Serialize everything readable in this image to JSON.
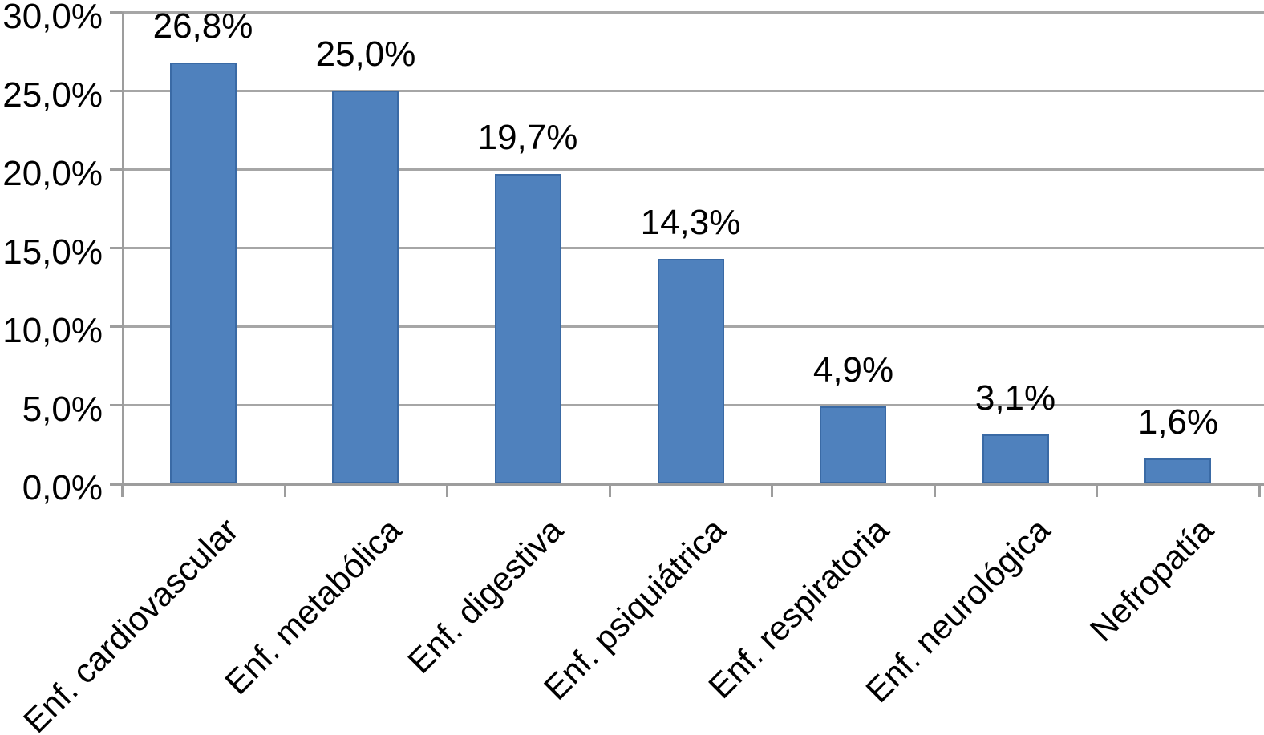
{
  "chart_data": {
    "type": "bar",
    "title": "",
    "categories": [
      "Enf. cardiovascular",
      "Enf. metabólica",
      "Enf. digestiva",
      "Enf. psiquiátrica",
      "Enf. respiratoria",
      "Enf. neurológica",
      "Nefropatía"
    ],
    "values": [
      26.8,
      25.0,
      19.7,
      14.3,
      4.9,
      3.1,
      1.6
    ],
    "data_labels": [
      "26,8%",
      "25,0%",
      "19,7%",
      "14,3%",
      "4,9%",
      "3,1%",
      "1,6%"
    ],
    "y_axis": {
      "tick_values": [
        0,
        5,
        10,
        15,
        20,
        25,
        30
      ],
      "tick_labels": [
        "0,0%",
        "5,0%",
        "10,0%",
        "15,0%",
        "20,0%",
        "25,0%",
        "30,0%"
      ]
    },
    "ylim": [
      0,
      30
    ],
    "xlabel": "",
    "ylabel": "",
    "grid": true,
    "legend": false,
    "colors": {
      "bar_fill": "#4f81bd",
      "bar_border": "#3a6aa5",
      "gridline": "#a6a6a6",
      "axis": "#9d9d9d",
      "text": "#000000",
      "background": "#ffffff"
    }
  }
}
